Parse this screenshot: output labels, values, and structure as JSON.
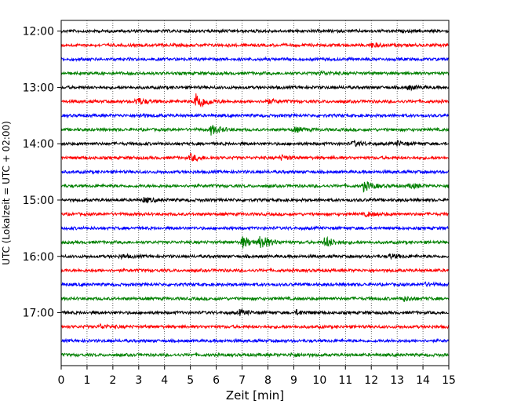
{
  "chart_data": {
    "type": "line",
    "title": "",
    "xlabel": "Zeit  [min]",
    "ylabel": "UTC (Lokalzeit = UTC + 02:00)",
    "xlim": [
      0,
      15
    ],
    "x_ticks": [
      "0",
      "1",
      "2",
      "3",
      "4",
      "5",
      "6",
      "7",
      "8",
      "9",
      "10",
      "11",
      "12",
      "13",
      "14",
      "15"
    ],
    "y_ticks": [
      "12:00",
      "13:00",
      "14:00",
      "15:00",
      "16:00",
      "17:00"
    ],
    "grid": "vertical-dotted",
    "legend": "none",
    "trace_colors": [
      "#000000",
      "#ff0000",
      "#0000ff",
      "#008000"
    ],
    "traces": [
      {
        "start": "12:00",
        "events": []
      },
      {
        "start": "12:15",
        "events": [
          {
            "t": 12.0,
            "amp": 2.5
          }
        ]
      },
      {
        "start": "12:30",
        "events": []
      },
      {
        "start": "12:45",
        "events": [
          {
            "t": 10.0,
            "amp": 2
          }
        ]
      },
      {
        "start": "13:00",
        "events": [
          {
            "t": 13.4,
            "amp": 2.5
          }
        ]
      },
      {
        "start": "13:15",
        "events": [
          {
            "t": 2.9,
            "amp": 5
          },
          {
            "t": 5.2,
            "amp": 12
          },
          {
            "t": 7.9,
            "amp": 3
          }
        ]
      },
      {
        "start": "13:30",
        "events": [
          {
            "t": 3.0,
            "amp": 2
          }
        ]
      },
      {
        "start": "13:45",
        "events": [
          {
            "t": 5.8,
            "amp": 6
          },
          {
            "t": 9.0,
            "amp": 3
          }
        ]
      },
      {
        "start": "14:00",
        "events": [
          {
            "t": 11.3,
            "amp": 3
          },
          {
            "t": 13.0,
            "amp": 2.5
          }
        ]
      },
      {
        "start": "14:15",
        "events": [
          {
            "t": 5.0,
            "amp": 4
          },
          {
            "t": 8.5,
            "amp": 2.5
          }
        ]
      },
      {
        "start": "14:30",
        "events": []
      },
      {
        "start": "14:45",
        "events": [
          {
            "t": 11.7,
            "amp": 6
          },
          {
            "t": 13.5,
            "amp": 3
          }
        ]
      },
      {
        "start": "15:00",
        "events": [
          {
            "t": 3.2,
            "amp": 3
          }
        ]
      },
      {
        "start": "15:15",
        "events": [
          {
            "t": 11.8,
            "amp": 2.5
          }
        ]
      },
      {
        "start": "15:30",
        "events": []
      },
      {
        "start": "15:45",
        "events": [
          {
            "t": 7.0,
            "amp": 7
          },
          {
            "t": 7.7,
            "amp": 9
          },
          {
            "t": 10.2,
            "amp": 7
          }
        ]
      },
      {
        "start": "16:00",
        "events": [
          {
            "t": 2.3,
            "amp": 2
          },
          {
            "t": 12.7,
            "amp": 2.5
          }
        ]
      },
      {
        "start": "16:15",
        "events": []
      },
      {
        "start": "16:30",
        "events": [
          {
            "t": 14.0,
            "amp": 2
          }
        ]
      },
      {
        "start": "16:45",
        "events": [
          {
            "t": 13.2,
            "amp": 3
          }
        ]
      },
      {
        "start": "17:00",
        "events": [
          {
            "t": 6.9,
            "amp": 3
          },
          {
            "t": 9.1,
            "amp": 2.5
          }
        ]
      },
      {
        "start": "17:15",
        "events": [
          {
            "t": 1.5,
            "amp": 2.5
          }
        ]
      },
      {
        "start": "17:30",
        "events": []
      },
      {
        "start": "17:45",
        "events": [
          {
            "t": 8.9,
            "amp": 2
          }
        ]
      }
    ]
  }
}
